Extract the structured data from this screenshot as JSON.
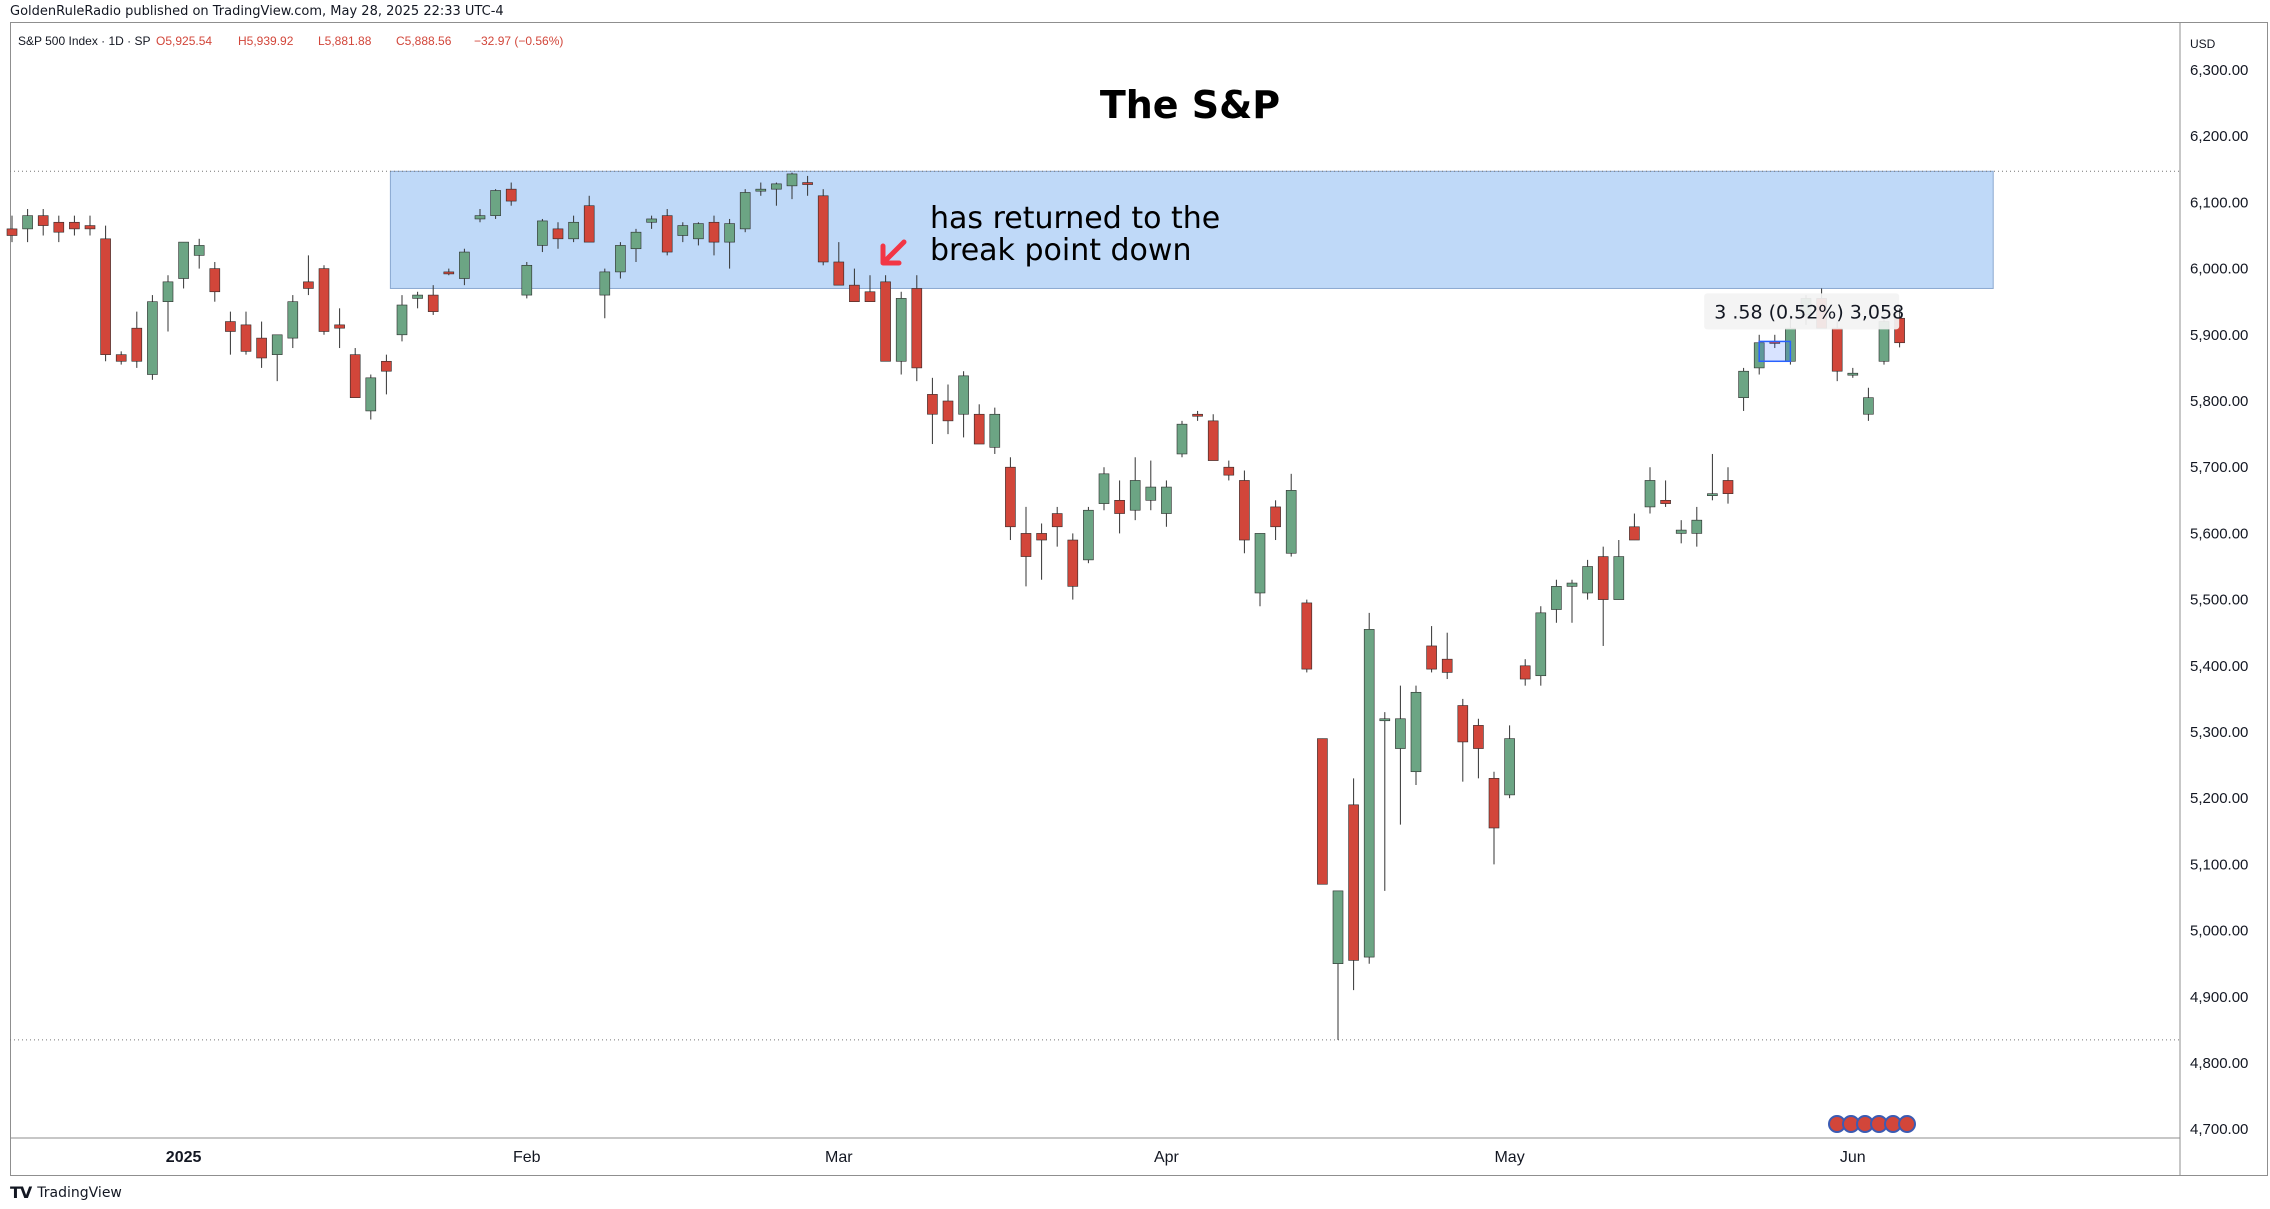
{
  "header": {
    "publish_text": "GoldenRuleRadio published on TradingView.com, May 28, 2025 22:33 UTC-4"
  },
  "legend": {
    "symbol": "S&P 500 Index · 1D · SP",
    "open": "O5,925.54",
    "high": "H5,939.92",
    "low": "L5,881.88",
    "close": "C5,888.56",
    "change": "−32.97 (−0.56%)"
  },
  "footer": {
    "brand": "TradingView"
  },
  "colors": {
    "up": "#6ca584",
    "down": "#d2463a",
    "zone": "#bfd9f8",
    "zone_border": "#8aa8d0"
  },
  "annotations": {
    "arrow_color": "#f23645",
    "note_line1": "has returned to the",
    "note_line2": "break point down",
    "measure_label": "3 .58 (0.52%) 3,058"
  },
  "chart_data": {
    "type": "candlestick",
    "title": "The S&P",
    "currency": "USD",
    "ylim": [
      4650,
      6380
    ],
    "yticks": [
      "6,300.00",
      "6,200.00",
      "6,100.00",
      "6,000.00",
      "5,900.00",
      "5,800.00",
      "5,700.00",
      "5,600.00",
      "5,500.00",
      "5,400.00",
      "5,300.00",
      "5,200.00",
      "5,100.00",
      "5,000.00",
      "4,900.00",
      "4,800.00",
      "4,700.00"
    ],
    "xticks": [
      {
        "label": "2025",
        "date": "2025-01-02"
      },
      {
        "label": "Feb",
        "date": "2025-02-03"
      },
      {
        "label": "Mar",
        "date": "2025-03-03"
      },
      {
        "label": "Apr",
        "date": "2025-04-01"
      },
      {
        "label": "May",
        "date": "2025-05-01"
      },
      {
        "label": "Jun",
        "date": "2025-06-02"
      }
    ],
    "horizontal_lines": [
      6147,
      4835
    ],
    "resistance_zone": {
      "from": "2025-01-21",
      "to": "2025-06-13",
      "low": 5970,
      "high": 6147
    },
    "measure_box": {
      "from": "2025-05-23",
      "to": "2025-05-27",
      "low": 5860,
      "high": 5890
    },
    "candles": [
      {
        "d": "2024-12-16",
        "o": 6060,
        "h": 6080,
        "l": 6040,
        "c": 6050
      },
      {
        "d": "2024-12-17",
        "o": 6060,
        "h": 6090,
        "l": 6040,
        "c": 6080
      },
      {
        "d": "2024-12-18",
        "o": 6080,
        "h": 6090,
        "l": 6050,
        "c": 6065
      },
      {
        "d": "2024-12-19",
        "o": 6070,
        "h": 6080,
        "l": 6040,
        "c": 6055
      },
      {
        "d": "2024-12-20",
        "o": 6070,
        "h": 6080,
        "l": 6050,
        "c": 6060
      },
      {
        "d": "2024-12-23",
        "o": 6065,
        "h": 6080,
        "l": 6050,
        "c": 6060
      },
      {
        "d": "2024-12-24",
        "o": 6045,
        "h": 6065,
        "l": 5860,
        "c": 5870
      },
      {
        "d": "2024-12-26",
        "o": 5870,
        "h": 5875,
        "l": 5855,
        "c": 5860
      },
      {
        "d": "2024-12-27",
        "o": 5910,
        "h": 5935,
        "l": 5850,
        "c": 5860
      },
      {
        "d": "2024-12-30",
        "o": 5840,
        "h": 5960,
        "l": 5832,
        "c": 5950
      },
      {
        "d": "2024-12-31",
        "o": 5950,
        "h": 5990,
        "l": 5905,
        "c": 5980
      },
      {
        "d": "2025-01-02",
        "o": 5985,
        "h": 6040,
        "l": 5970,
        "c": 6040
      },
      {
        "d": "2025-01-03",
        "o": 6020,
        "h": 6045,
        "l": 6000,
        "c": 6035
      },
      {
        "d": "2025-01-06",
        "o": 6000,
        "h": 6010,
        "l": 5950,
        "c": 5965
      },
      {
        "d": "2025-01-07",
        "o": 5920,
        "h": 5935,
        "l": 5870,
        "c": 5905
      },
      {
        "d": "2025-01-08",
        "o": 5915,
        "h": 5935,
        "l": 5870,
        "c": 5875
      },
      {
        "d": "2025-01-09",
        "o": 5895,
        "h": 5920,
        "l": 5850,
        "c": 5865
      },
      {
        "d": "2025-01-10",
        "o": 5870,
        "h": 5900,
        "l": 5830,
        "c": 5900
      },
      {
        "d": "2025-01-13",
        "o": 5895,
        "h": 5960,
        "l": 5880,
        "c": 5950
      },
      {
        "d": "2025-01-14",
        "o": 5980,
        "h": 6020,
        "l": 5960,
        "c": 5970
      },
      {
        "d": "2025-01-15",
        "o": 6000,
        "h": 6005,
        "l": 5900,
        "c": 5905
      },
      {
        "d": "2025-01-16",
        "o": 5915,
        "h": 5940,
        "l": 5880,
        "c": 5910
      },
      {
        "d": "2025-01-17",
        "o": 5870,
        "h": 5880,
        "l": 5810,
        "c": 5805
      },
      {
        "d": "2025-01-20",
        "o": 5785,
        "h": 5840,
        "l": 5772,
        "c": 5835
      },
      {
        "d": "2025-01-21",
        "o": 5860,
        "h": 5870,
        "l": 5810,
        "c": 5845
      },
      {
        "d": "2025-01-22",
        "o": 5900,
        "h": 5960,
        "l": 5890,
        "c": 5945
      },
      {
        "d": "2025-01-23",
        "o": 5955,
        "h": 5965,
        "l": 5940,
        "c": 5960
      },
      {
        "d": "2025-01-24",
        "o": 5960,
        "h": 5975,
        "l": 5930,
        "c": 5935
      },
      {
        "d": "2025-01-27",
        "o": 5995,
        "h": 6000,
        "l": 5990,
        "c": 5992
      },
      {
        "d": "2025-01-28",
        "o": 5985,
        "h": 6030,
        "l": 5975,
        "c": 6025
      },
      {
        "d": "2025-01-29",
        "o": 6075,
        "h": 6090,
        "l": 6070,
        "c": 6080
      },
      {
        "d": "2025-01-30",
        "o": 6080,
        "h": 6120,
        "l": 6075,
        "c": 6118
      },
      {
        "d": "2025-01-31",
        "o": 6120,
        "h": 6130,
        "l": 6095,
        "c": 6102
      },
      {
        "d": "2025-02-03",
        "o": 5960,
        "h": 6010,
        "l": 5955,
        "c": 6005
      },
      {
        "d": "2025-02-04",
        "o": 6035,
        "h": 6075,
        "l": 6025,
        "c": 6072
      },
      {
        "d": "2025-02-05",
        "o": 6060,
        "h": 6070,
        "l": 6030,
        "c": 6045
      },
      {
        "d": "2025-02-06",
        "o": 6045,
        "h": 6080,
        "l": 6040,
        "c": 6070
      },
      {
        "d": "2025-02-07",
        "o": 6095,
        "h": 6110,
        "l": 6040,
        "c": 6040
      },
      {
        "d": "2025-02-10",
        "o": 5960,
        "h": 6000,
        "l": 5925,
        "c": 5995
      },
      {
        "d": "2025-02-11",
        "o": 5995,
        "h": 6040,
        "l": 5985,
        "c": 6035
      },
      {
        "d": "2025-02-12",
        "o": 6030,
        "h": 6060,
        "l": 6010,
        "c": 6055
      },
      {
        "d": "2025-02-13",
        "o": 6070,
        "h": 6080,
        "l": 6060,
        "c": 6075
      },
      {
        "d": "2025-02-14",
        "o": 6080,
        "h": 6090,
        "l": 6020,
        "c": 6025
      },
      {
        "d": "2025-02-17",
        "o": 6050,
        "h": 6070,
        "l": 6040,
        "c": 6065
      },
      {
        "d": "2025-02-18",
        "o": 6045,
        "h": 6070,
        "l": 6035,
        "c": 6068
      },
      {
        "d": "2025-02-19",
        "o": 6070,
        "h": 6080,
        "l": 6020,
        "c": 6040
      },
      {
        "d": "2025-02-20",
        "o": 6040,
        "h": 6075,
        "l": 6000,
        "c": 6068
      },
      {
        "d": "2025-02-21",
        "o": 6060,
        "h": 6120,
        "l": 6055,
        "c": 6115
      },
      {
        "d": "2025-02-24",
        "o": 6118,
        "h": 6130,
        "l": 6110,
        "c": 6120
      },
      {
        "d": "2025-02-25",
        "o": 6120,
        "h": 6130,
        "l": 6095,
        "c": 6128
      },
      {
        "d": "2025-02-26",
        "o": 6125,
        "h": 6145,
        "l": 6105,
        "c": 6143
      },
      {
        "d": "2025-02-27",
        "o": 6130,
        "h": 6140,
        "l": 6110,
        "c": 6128
      },
      {
        "d": "2025-02-28",
        "o": 6110,
        "h": 6120,
        "l": 6005,
        "c": 6010
      },
      {
        "d": "2025-03-03",
        "o": 6010,
        "h": 6040,
        "l": 5990,
        "c": 5975
      },
      {
        "d": "2025-03-04",
        "o": 5975,
        "h": 6000,
        "l": 5950,
        "c": 5950
      },
      {
        "d": "2025-03-05",
        "o": 5965,
        "h": 5990,
        "l": 5950,
        "c": 5950
      },
      {
        "d": "2025-03-06",
        "o": 5980,
        "h": 5990,
        "l": 5860,
        "c": 5860
      },
      {
        "d": "2025-03-07",
        "o": 5860,
        "h": 5965,
        "l": 5840,
        "c": 5955
      },
      {
        "d": "2025-03-10",
        "o": 5970,
        "h": 5990,
        "l": 5830,
        "c": 5850
      },
      {
        "d": "2025-03-11",
        "o": 5810,
        "h": 5835,
        "l": 5735,
        "c": 5780
      },
      {
        "d": "2025-03-12",
        "o": 5800,
        "h": 5825,
        "l": 5750,
        "c": 5770
      },
      {
        "d": "2025-03-13",
        "o": 5780,
        "h": 5845,
        "l": 5745,
        "c": 5838
      },
      {
        "d": "2025-03-14",
        "o": 5780,
        "h": 5795,
        "l": 5735,
        "c": 5735
      },
      {
        "d": "2025-03-17",
        "o": 5730,
        "h": 5790,
        "l": 5720,
        "c": 5780
      },
      {
        "d": "2025-03-18",
        "o": 5700,
        "h": 5715,
        "l": 5590,
        "c": 5610
      },
      {
        "d": "2025-03-19",
        "o": 5600,
        "h": 5640,
        "l": 5520,
        "c": 5565
      },
      {
        "d": "2025-03-20",
        "o": 5600,
        "h": 5615,
        "l": 5530,
        "c": 5590
      },
      {
        "d": "2025-03-21",
        "o": 5630,
        "h": 5640,
        "l": 5580,
        "c": 5610
      },
      {
        "d": "2025-03-24",
        "o": 5590,
        "h": 5600,
        "l": 5500,
        "c": 5520
      },
      {
        "d": "2025-03-25",
        "o": 5560,
        "h": 5640,
        "l": 5555,
        "c": 5635
      },
      {
        "d": "2025-03-26",
        "o": 5645,
        "h": 5700,
        "l": 5635,
        "c": 5690
      },
      {
        "d": "2025-03-27",
        "o": 5650,
        "h": 5680,
        "l": 5600,
        "c": 5630
      },
      {
        "d": "2025-03-28",
        "o": 5635,
        "h": 5715,
        "l": 5620,
        "c": 5680
      },
      {
        "d": "2025-03-31",
        "o": 5650,
        "h": 5710,
        "l": 5635,
        "c": 5670
      },
      {
        "d": "2025-04-01",
        "o": 5630,
        "h": 5680,
        "l": 5610,
        "c": 5670
      },
      {
        "d": "2025-04-02",
        "o": 5720,
        "h": 5770,
        "l": 5715,
        "c": 5765
      },
      {
        "d": "2025-04-03",
        "o": 5780,
        "h": 5785,
        "l": 5770,
        "c": 5778
      },
      {
        "d": "2025-04-04",
        "o": 5770,
        "h": 5780,
        "l": 5715,
        "c": 5710
      },
      {
        "d": "2025-04-07",
        "o": 5700,
        "h": 5710,
        "l": 5680,
        "c": 5688
      },
      {
        "d": "2025-04-08",
        "o": 5680,
        "h": 5695,
        "l": 5570,
        "c": 5590
      },
      {
        "d": "2025-04-09",
        "o": 5510,
        "h": 5600,
        "l": 5490,
        "c": 5600
      },
      {
        "d": "2025-04-10",
        "o": 5640,
        "h": 5650,
        "l": 5590,
        "c": 5610
      },
      {
        "d": "2025-04-11",
        "o": 5570,
        "h": 5690,
        "l": 5565,
        "c": 5665
      },
      {
        "d": "2025-04-14",
        "o": 5495,
        "h": 5500,
        "l": 5390,
        "c": 5395
      },
      {
        "d": "2025-04-15",
        "o": 5290,
        "h": 5290,
        "l": 5070,
        "c": 5070
      },
      {
        "d": "2025-04-16",
        "o": 4950,
        "h": 5050,
        "l": 4835,
        "c": 5060
      },
      {
        "d": "2025-04-17",
        "o": 5190,
        "h": 5230,
        "l": 4910,
        "c": 4955
      },
      {
        "d": "2025-04-18",
        "o": 4960,
        "h": 5480,
        "l": 4950,
        "c": 5455
      },
      {
        "d": "2025-04-21",
        "o": 5320,
        "h": 5330,
        "l": 5060,
        "c": 5320
      },
      {
        "d": "2025-04-22",
        "o": 5275,
        "h": 5370,
        "l": 5160,
        "c": 5320
      },
      {
        "d": "2025-04-23",
        "o": 5240,
        "h": 5370,
        "l": 5220,
        "c": 5360
      },
      {
        "d": "2025-04-24",
        "o": 5430,
        "h": 5460,
        "l": 5390,
        "c": 5395
      },
      {
        "d": "2025-04-25",
        "o": 5410,
        "h": 5450,
        "l": 5380,
        "c": 5390
      },
      {
        "d": "2025-04-28",
        "o": 5340,
        "h": 5350,
        "l": 5225,
        "c": 5285
      },
      {
        "d": "2025-04-29",
        "o": 5310,
        "h": 5320,
        "l": 5230,
        "c": 5275
      },
      {
        "d": "2025-04-30",
        "o": 5230,
        "h": 5240,
        "l": 5100,
        "c": 5155
      },
      {
        "d": "2025-05-01",
        "o": 5205,
        "h": 5310,
        "l": 5200,
        "c": 5290
      },
      {
        "d": "2025-05-02",
        "o": 5400,
        "h": 5410,
        "l": 5370,
        "c": 5380
      },
      {
        "d": "2025-05-05",
        "o": 5385,
        "h": 5490,
        "l": 5370,
        "c": 5480
      },
      {
        "d": "2025-05-06",
        "o": 5485,
        "h": 5530,
        "l": 5465,
        "c": 5520
      },
      {
        "d": "2025-05-07",
        "o": 5520,
        "h": 5530,
        "l": 5465,
        "c": 5525
      },
      {
        "d": "2025-05-08",
        "o": 5510,
        "h": 5560,
        "l": 5500,
        "c": 5550
      },
      {
        "d": "2025-05-09",
        "o": 5565,
        "h": 5580,
        "l": 5430,
        "c": 5500
      },
      {
        "d": "2025-05-12",
        "o": 5500,
        "h": 5590,
        "l": 5500,
        "c": 5565
      },
      {
        "d": "2025-05-13",
        "o": 5610,
        "h": 5630,
        "l": 5590,
        "c": 5590
      },
      {
        "d": "2025-05-14",
        "o": 5640,
        "h": 5700,
        "l": 5630,
        "c": 5680
      },
      {
        "d": "2025-05-15",
        "o": 5650,
        "h": 5680,
        "l": 5640,
        "c": 5645
      },
      {
        "d": "2025-05-16",
        "o": 5600,
        "h": 5620,
        "l": 5585,
        "c": 5605
      },
      {
        "d": "2025-05-19",
        "o": 5600,
        "h": 5640,
        "l": 5580,
        "c": 5620
      },
      {
        "d": "2025-05-20",
        "o": 5660,
        "h": 5720,
        "l": 5650,
        "c": 5660
      },
      {
        "d": "2025-05-21",
        "o": 5680,
        "h": 5700,
        "l": 5645,
        "c": 5660
      },
      {
        "d": "2025-05-22",
        "o": 5805,
        "h": 5850,
        "l": 5785,
        "c": 5845
      },
      {
        "d": "2025-05-23",
        "o": 5850,
        "h": 5900,
        "l": 5840,
        "c": 5888
      },
      {
        "d": "2025-05-26",
        "o": 5890,
        "h": 5900,
        "l": 5880,
        "c": 5888
      },
      {
        "d": "2025-05-27",
        "o": 5860,
        "h": 5930,
        "l": 5855,
        "c": 5910
      },
      {
        "d": "2025-05-28",
        "o": 5930,
        "h": 5960,
        "l": 5915,
        "c": 5955
      },
      {
        "d": "2025-05-29",
        "o": 5955,
        "h": 5970,
        "l": 5920,
        "c": 5910
      },
      {
        "d": "2025-05-30",
        "o": 5910,
        "h": 5920,
        "l": 5830,
        "c": 5845
      },
      {
        "d": "2025-06-02",
        "o": 5840,
        "h": 5850,
        "l": 5835,
        "c": 5842
      },
      {
        "d": "2025-06-03",
        "o": 5780,
        "h": 5820,
        "l": 5770,
        "c": 5805
      },
      {
        "d": "2025-06-04",
        "o": 5860,
        "h": 5930,
        "l": 5855,
        "c": 5920
      },
      {
        "d": "2025-06-05",
        "o": 5925,
        "h": 5940,
        "l": 5881,
        "c": 5888
      }
    ]
  }
}
